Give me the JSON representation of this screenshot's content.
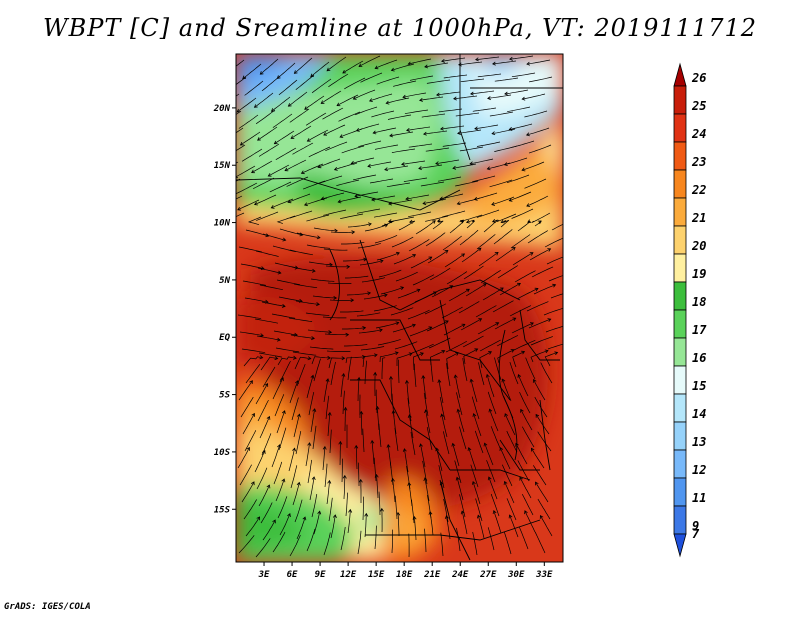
{
  "title": "WBPT [C] and Sreamline at 1000hPa, VT: 2019111712",
  "credit": "GrADS: IGES/COLA",
  "map": {
    "lat_ticks": [
      {
        "label": "20N",
        "lat": 20
      },
      {
        "label": "15N",
        "lat": 15
      },
      {
        "label": "10N",
        "lat": 10
      },
      {
        "label": "5N",
        "lat": 5
      },
      {
        "label": "EQ",
        "lat": 0
      },
      {
        "label": "5S",
        "lat": -5
      },
      {
        "label": "10S",
        "lat": -10
      },
      {
        "label": "15S",
        "lat": -15
      }
    ],
    "lon_ticks": [
      {
        "label": "3E",
        "lon": 3
      },
      {
        "label": "6E",
        "lon": 6
      },
      {
        "label": "9E",
        "lon": 9
      },
      {
        "label": "12E",
        "lon": 12
      },
      {
        "label": "15E",
        "lon": 15
      },
      {
        "label": "18E",
        "lon": 18
      },
      {
        "label": "21E",
        "lon": 21
      },
      {
        "label": "24E",
        "lon": 24
      },
      {
        "label": "27E",
        "lon": 27
      },
      {
        "label": "30E",
        "lon": 30
      },
      {
        "label": "33E",
        "lon": 33
      }
    ]
  },
  "colorbar": {
    "levels": [
      {
        "label": "26",
        "color": "#a50000"
      },
      {
        "label": "25",
        "color": "#c81e0a"
      },
      {
        "label": "24",
        "color": "#e03214"
      },
      {
        "label": "23",
        "color": "#f05a14"
      },
      {
        "label": "22",
        "color": "#f7861e"
      },
      {
        "label": "21",
        "color": "#fbab3c"
      },
      {
        "label": "20",
        "color": "#fdd26e"
      },
      {
        "label": "19",
        "color": "#fff0a0"
      },
      {
        "label": "18",
        "color": "#3cbe3c"
      },
      {
        "label": "17",
        "color": "#5ad25a"
      },
      {
        "label": "16",
        "color": "#96e696"
      },
      {
        "label": "15",
        "color": "#e6fafa"
      },
      {
        "label": "14",
        "color": "#b4e6fa"
      },
      {
        "label": "13",
        "color": "#96d2fa"
      },
      {
        "label": "12",
        "color": "#78b9fa"
      },
      {
        "label": "11",
        "color": "#5096f0"
      },
      {
        "label": "9",
        "color": "#3c78e6"
      },
      {
        "label": "7",
        "color": "#1e50dc"
      }
    ]
  }
}
